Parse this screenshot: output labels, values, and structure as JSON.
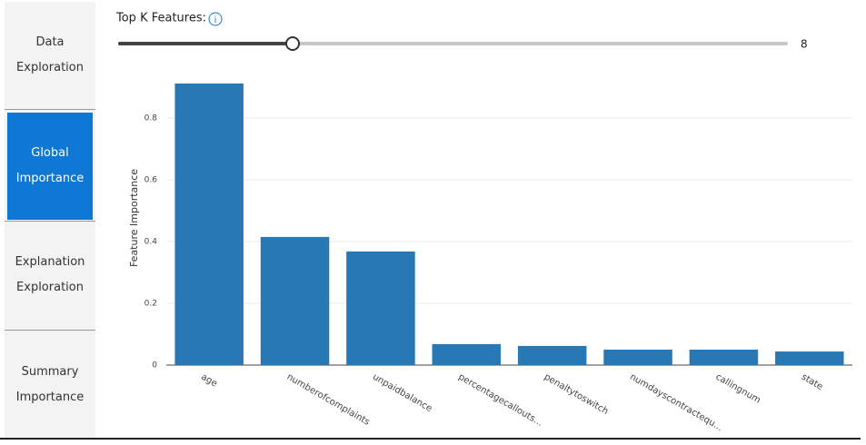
{
  "sidebar": {
    "items": [
      {
        "label": "Data Exploration",
        "selected": false
      },
      {
        "label": "Global Importance",
        "selected": true
      },
      {
        "label": "Explanation Exploration",
        "selected": false
      },
      {
        "label": "Summary Importance",
        "selected": false
      }
    ]
  },
  "slider": {
    "label": "Top K Features:",
    "value": 8,
    "range": [
      1,
      28
    ]
  },
  "chart_data": {
    "type": "bar",
    "y_label": "Feature Importance",
    "categories": [
      "age",
      "numberofcomplaints",
      "unpaidbalance",
      "percentagecallouts...",
      "penaltytoswitch",
      "numdayscontractequ...",
      "callingnum",
      "state"
    ],
    "values": [
      0.912,
      0.415,
      0.368,
      0.068,
      0.062,
      0.05,
      0.05,
      0.044
    ],
    "color": "#2878b5",
    "ylim": [
      0,
      0.95
    ],
    "yticks": [
      0,
      0.2,
      0.4,
      0.6,
      0.8
    ],
    "grid": true
  }
}
